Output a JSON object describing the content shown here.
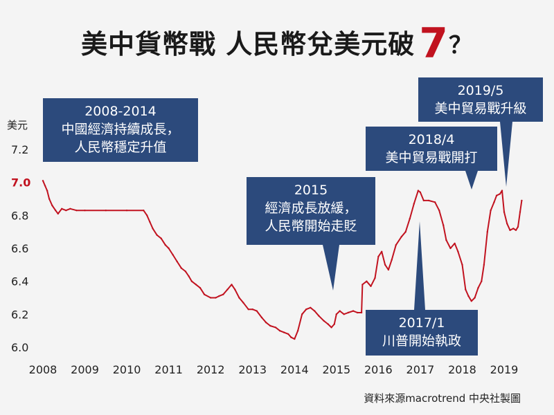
{
  "title": {
    "main": "美中貨幣戰  人民幣兌美元破",
    "seven": "7",
    "question": "？"
  },
  "chart_data": {
    "type": "line",
    "title": "美中貨幣戰  人民幣兌美元破7？",
    "xlabel": "",
    "ylabel": "美元",
    "x_ticks": [
      "2008",
      "2009",
      "2010",
      "2011",
      "2012",
      "2013",
      "2014",
      "2015",
      "2016",
      "2017",
      "2018",
      "2019"
    ],
    "y_ticks": [
      "6.0",
      "6.2",
      "6.4",
      "6.6",
      "6.8",
      "7.0",
      "7.2"
    ],
    "highlight_y_tick": "7.0",
    "ylim": [
      6.0,
      7.2
    ],
    "xlim": [
      2008.0,
      2019.0
    ],
    "series": [
      {
        "color": "#c1121f",
        "points": [
          [
            2008.0,
            7.01
          ],
          [
            2008.05,
            6.98
          ],
          [
            2008.1,
            6.95
          ],
          [
            2008.15,
            6.9
          ],
          [
            2008.22,
            6.86
          ],
          [
            2008.3,
            6.83
          ],
          [
            2008.36,
            6.81
          ],
          [
            2008.45,
            6.84
          ],
          [
            2008.55,
            6.83
          ],
          [
            2008.65,
            6.84
          ],
          [
            2008.8,
            6.83
          ],
          [
            2009.0,
            6.83
          ],
          [
            2009.5,
            6.83
          ],
          [
            2010.0,
            6.83
          ],
          [
            2010.4,
            6.83
          ],
          [
            2010.48,
            6.8
          ],
          [
            2010.55,
            6.76
          ],
          [
            2010.62,
            6.72
          ],
          [
            2010.72,
            6.68
          ],
          [
            2010.82,
            6.66
          ],
          [
            2010.92,
            6.62
          ],
          [
            2011.0,
            6.6
          ],
          [
            2011.1,
            6.56
          ],
          [
            2011.2,
            6.52
          ],
          [
            2011.3,
            6.48
          ],
          [
            2011.4,
            6.46
          ],
          [
            2011.48,
            6.43
          ],
          [
            2011.55,
            6.4
          ],
          [
            2011.65,
            6.38
          ],
          [
            2011.75,
            6.36
          ],
          [
            2011.85,
            6.32
          ],
          [
            2012.0,
            6.3
          ],
          [
            2012.12,
            6.3
          ],
          [
            2012.2,
            6.31
          ],
          [
            2012.3,
            6.32
          ],
          [
            2012.4,
            6.35
          ],
          [
            2012.5,
            6.38
          ],
          [
            2012.58,
            6.35
          ],
          [
            2012.68,
            6.3
          ],
          [
            2012.78,
            6.27
          ],
          [
            2012.9,
            6.23
          ],
          [
            2013.0,
            6.23
          ],
          [
            2013.1,
            6.22
          ],
          [
            2013.22,
            6.18
          ],
          [
            2013.32,
            6.15
          ],
          [
            2013.42,
            6.13
          ],
          [
            2013.55,
            6.12
          ],
          [
            2013.65,
            6.1
          ],
          [
            2013.75,
            6.09
          ],
          [
            2013.85,
            6.08
          ],
          [
            2013.92,
            6.06
          ],
          [
            2014.0,
            6.05
          ],
          [
            2014.08,
            6.1
          ],
          [
            2014.18,
            6.2
          ],
          [
            2014.28,
            6.23
          ],
          [
            2014.38,
            6.24
          ],
          [
            2014.48,
            6.22
          ],
          [
            2014.58,
            6.19
          ],
          [
            2014.7,
            6.16
          ],
          [
            2014.8,
            6.14
          ],
          [
            2014.88,
            6.12
          ],
          [
            2014.95,
            6.14
          ],
          [
            2015.0,
            6.2
          ],
          [
            2015.08,
            6.22
          ],
          [
            2015.18,
            6.2
          ],
          [
            2015.28,
            6.21
          ],
          [
            2015.4,
            6.22
          ],
          [
            2015.5,
            6.21
          ],
          [
            2015.6,
            6.21
          ],
          [
            2015.62,
            6.38
          ],
          [
            2015.72,
            6.4
          ],
          [
            2015.82,
            6.37
          ],
          [
            2015.92,
            6.42
          ],
          [
            2016.0,
            6.55
          ],
          [
            2016.08,
            6.58
          ],
          [
            2016.16,
            6.5
          ],
          [
            2016.24,
            6.47
          ],
          [
            2016.32,
            6.53
          ],
          [
            2016.42,
            6.62
          ],
          [
            2016.55,
            6.67
          ],
          [
            2016.65,
            6.7
          ],
          [
            2016.75,
            6.78
          ],
          [
            2016.85,
            6.87
          ],
          [
            2016.95,
            6.95
          ],
          [
            2017.0,
            6.94
          ],
          [
            2017.08,
            6.89
          ],
          [
            2017.2,
            6.89
          ],
          [
            2017.35,
            6.88
          ],
          [
            2017.45,
            6.83
          ],
          [
            2017.55,
            6.74
          ],
          [
            2017.62,
            6.65
          ],
          [
            2017.72,
            6.6
          ],
          [
            2017.82,
            6.63
          ],
          [
            2017.9,
            6.58
          ],
          [
            2018.0,
            6.5
          ],
          [
            2018.08,
            6.35
          ],
          [
            2018.15,
            6.31
          ],
          [
            2018.22,
            6.28
          ],
          [
            2018.3,
            6.3
          ],
          [
            2018.38,
            6.36
          ],
          [
            2018.46,
            6.4
          ],
          [
            2018.52,
            6.5
          ],
          [
            2018.6,
            6.7
          ],
          [
            2018.68,
            6.83
          ],
          [
            2018.76,
            6.88
          ],
          [
            2018.82,
            6.92
          ],
          [
            2018.9,
            6.93
          ],
          [
            2018.95,
            6.95
          ],
          [
            2019.0,
            6.82
          ],
          [
            2019.07,
            6.75
          ],
          [
            2019.14,
            6.71
          ],
          [
            2019.22,
            6.72
          ],
          [
            2019.28,
            6.71
          ],
          [
            2019.33,
            6.73
          ],
          [
            2019.38,
            6.82
          ],
          [
            2019.42,
            6.89
          ]
        ]
      }
    ],
    "annotations": [
      {
        "id": "a2008",
        "lines": [
          "2008-2014",
          "中國經濟持續成長，",
          "人民幣穩定升值"
        ]
      },
      {
        "id": "a2015",
        "lines": [
          "2015",
          "經濟成長放緩，",
          "人民幣開始走貶"
        ]
      },
      {
        "id": "a2017",
        "lines": [
          "2017/1",
          "川普開始執政"
        ]
      },
      {
        "id": "a2018",
        "lines": [
          "2018/4",
          "美中貿易戰開打"
        ]
      },
      {
        "id": "a2019",
        "lines": [
          "2019/5",
          "美中貿易戰升級"
        ]
      }
    ]
  },
  "source": "資料來源macrotrend   中央社製圖"
}
